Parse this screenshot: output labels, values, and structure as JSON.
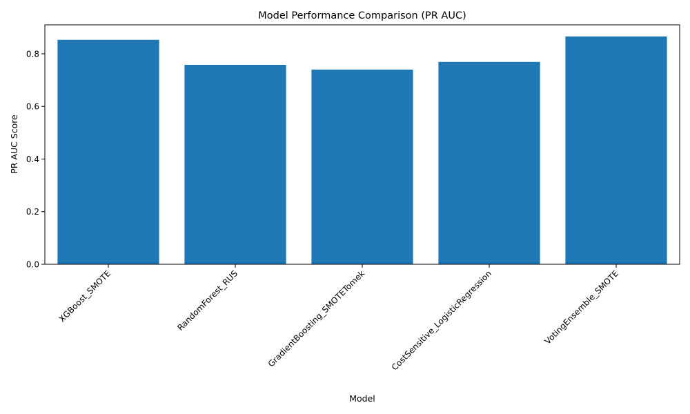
{
  "chart_data": {
    "type": "bar",
    "title": "Model Performance Comparison (PR AUC)",
    "xlabel": "Model",
    "ylabel": "PR AUC Score",
    "categories": [
      "XGBoost_SMOTE",
      "RandomForest_RUS",
      "GradientBoosting_SMOTETomek",
      "CostSensitive_LogisticRegression",
      "VotingEnsemble_SMOTE"
    ],
    "values": [
      0.853,
      0.758,
      0.74,
      0.769,
      0.866
    ],
    "ylim": [
      0,
      0.91
    ],
    "yticks": [
      0.0,
      0.2,
      0.4,
      0.6,
      0.8
    ],
    "ytick_labels": [
      "0.0",
      "0.2",
      "0.4",
      "0.6",
      "0.8"
    ],
    "bar_color": "#1f77b4",
    "grid": false,
    "legend": "none"
  }
}
